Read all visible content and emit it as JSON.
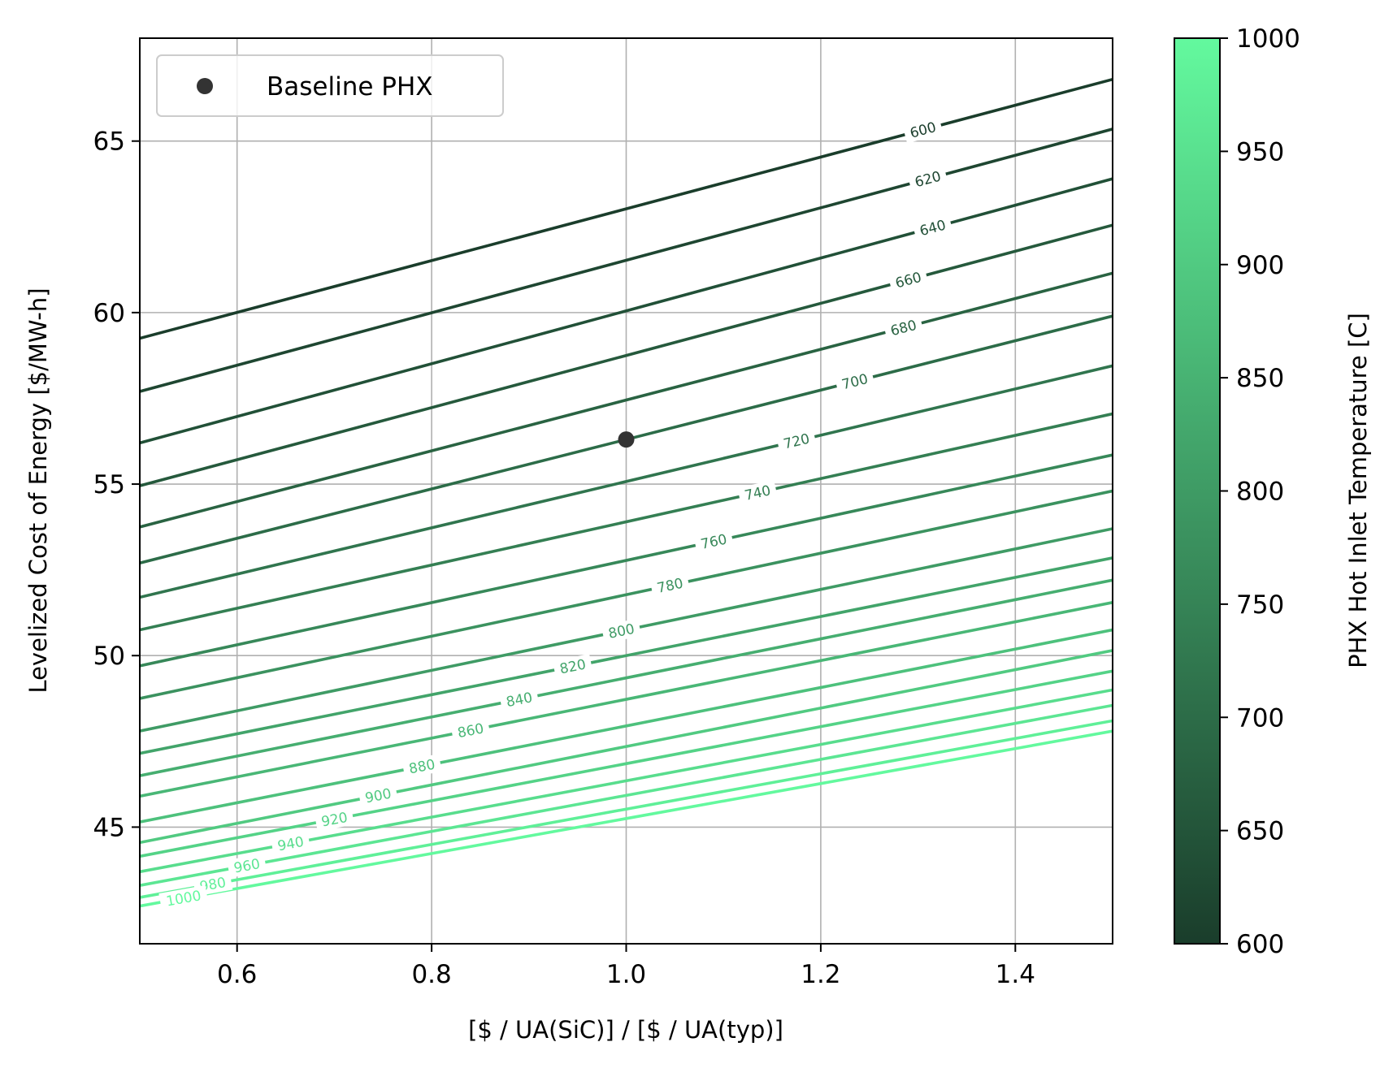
{
  "chart_data": {
    "type": "line",
    "title": "",
    "xlabel": "[$ / UA(SiC)] / [$ / UA(typ)]",
    "ylabel": "Levelized Cost of Energy [$/MW-h]",
    "xlim": [
      0.5,
      1.5
    ],
    "ylim": [
      41.6,
      68.0
    ],
    "xticks": [
      0.6,
      0.8,
      1.0,
      1.2,
      1.4
    ],
    "xtick_labels": [
      "0.6",
      "0.8",
      "1.0",
      "1.2",
      "1.4"
    ],
    "yticks": [
      45,
      50,
      55,
      60,
      65
    ],
    "ytick_labels": [
      "45",
      "50",
      "55",
      "60",
      "65"
    ],
    "grid": true,
    "legend": {
      "placement": "upper-left",
      "entries": [
        "Baseline PHX"
      ]
    },
    "baseline_point": {
      "x": 1.0,
      "y": 56.3,
      "color": "#333333"
    },
    "colorbar": {
      "label": "PHX Hot Inlet Temperature [C]",
      "min": 600,
      "max": 1000,
      "ticks": [
        600,
        650,
        700,
        750,
        800,
        850,
        900,
        950,
        1000
      ],
      "tick_labels": [
        "600",
        "650",
        "700",
        "750",
        "800",
        "850",
        "900",
        "950",
        "1000"
      ],
      "color_low": "#1a3d2b",
      "color_high": "#63f99e"
    },
    "series": [
      {
        "name": "600",
        "level": 600,
        "x": [
          0.5,
          1.5
        ],
        "y": [
          59.25,
          66.8
        ],
        "label_x": 1.305
      },
      {
        "name": "620",
        "level": 620,
        "x": [
          0.5,
          1.5
        ],
        "y": [
          57.7,
          65.35
        ],
        "label_x": 1.31
      },
      {
        "name": "640",
        "level": 640,
        "x": [
          0.5,
          1.5
        ],
        "y": [
          56.2,
          63.9
        ],
        "label_x": 1.315
      },
      {
        "name": "660",
        "level": 660,
        "x": [
          0.5,
          1.5
        ],
        "y": [
          54.95,
          62.55
        ],
        "label_x": 1.29
      },
      {
        "name": "680",
        "level": 680,
        "x": [
          0.5,
          1.5
        ],
        "y": [
          53.75,
          61.15
        ],
        "label_x": 1.285
      },
      {
        "name": "700",
        "level": 700,
        "x": [
          0.5,
          1.5
        ],
        "y": [
          52.7,
          59.9
        ],
        "label_x": 1.235
      },
      {
        "name": "720",
        "level": 720,
        "x": [
          0.5,
          1.5
        ],
        "y": [
          51.7,
          58.45
        ],
        "label_x": 1.175
      },
      {
        "name": "740",
        "level": 740,
        "x": [
          0.5,
          1.5
        ],
        "y": [
          50.75,
          57.05
        ],
        "label_x": 1.135
      },
      {
        "name": "760",
        "level": 760,
        "x": [
          0.5,
          1.5
        ],
        "y": [
          49.7,
          55.85
        ],
        "label_x": 1.09
      },
      {
        "name": "780",
        "level": 780,
        "x": [
          0.5,
          1.5
        ],
        "y": [
          48.75,
          54.8
        ],
        "label_x": 1.045
      },
      {
        "name": "800",
        "level": 800,
        "x": [
          0.5,
          1.5
        ],
        "y": [
          47.8,
          53.7
        ],
        "label_x": 0.995
      },
      {
        "name": "820",
        "level": 820,
        "x": [
          0.5,
          1.5
        ],
        "y": [
          47.15,
          52.85
        ],
        "label_x": 0.945
      },
      {
        "name": "840",
        "level": 840,
        "x": [
          0.5,
          1.5
        ],
        "y": [
          46.5,
          52.2
        ],
        "label_x": 0.89
      },
      {
        "name": "860",
        "level": 860,
        "x": [
          0.5,
          1.5
        ],
        "y": [
          45.9,
          51.55
        ],
        "label_x": 0.84
      },
      {
        "name": "880",
        "level": 880,
        "x": [
          0.5,
          1.5
        ],
        "y": [
          45.15,
          50.75
        ],
        "label_x": 0.79
      },
      {
        "name": "900",
        "level": 900,
        "x": [
          0.5,
          1.5
        ],
        "y": [
          44.55,
          50.15
        ],
        "label_x": 0.745
      },
      {
        "name": "920",
        "level": 920,
        "x": [
          0.5,
          1.5
        ],
        "y": [
          44.15,
          49.55
        ],
        "label_x": 0.7
      },
      {
        "name": "940",
        "level": 940,
        "x": [
          0.5,
          1.5
        ],
        "y": [
          43.7,
          49.0
        ],
        "label_x": 0.655
      },
      {
        "name": "960",
        "level": 960,
        "x": [
          0.5,
          1.5
        ],
        "y": [
          43.3,
          48.55
        ],
        "label_x": 0.61
      },
      {
        "name": "980",
        "level": 980,
        "x": [
          0.5,
          1.5
        ],
        "y": [
          42.95,
          48.1
        ],
        "label_x": 0.575
      },
      {
        "name": "1000",
        "level": 1000,
        "x": [
          0.5,
          1.5
        ],
        "y": [
          42.7,
          47.8
        ],
        "label_x": 0.545
      }
    ]
  }
}
